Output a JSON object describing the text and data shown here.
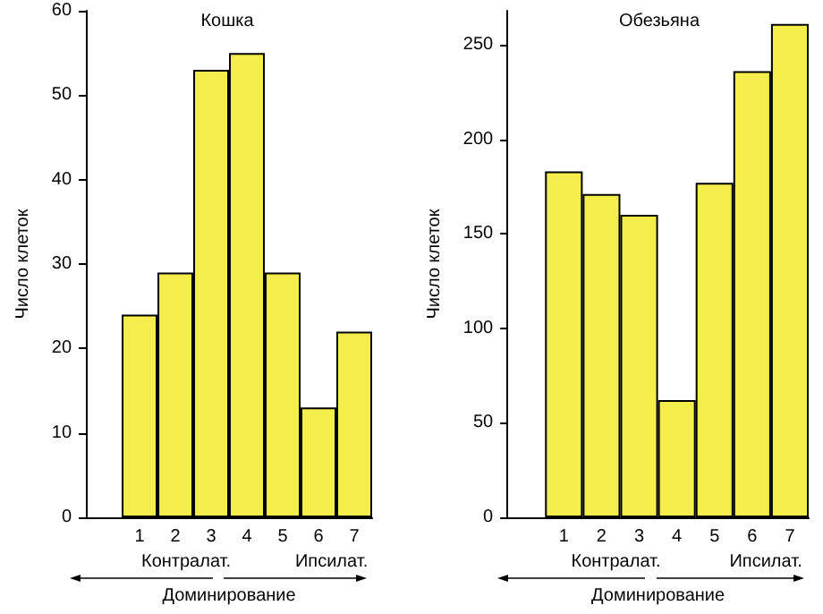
{
  "chart_data": [
    {
      "type": "bar",
      "title": "Кошка",
      "xlabel": "Доминирование",
      "ylabel": "Число клеток",
      "categories": [
        null,
        "1",
        "2",
        "3",
        "4",
        "5",
        "6",
        "7"
      ],
      "values": [
        null,
        24,
        29,
        53,
        55,
        29,
        13,
        22
      ],
      "color": "#f4ee4c",
      "ylim": [
        0,
        60
      ],
      "yticks": [
        0,
        10,
        20,
        30,
        40,
        50,
        60
      ],
      "grid": false,
      "annotations": [
        "Контралат.",
        "Ипсилат."
      ]
    },
    {
      "type": "bar",
      "title": "Обезьяна",
      "xlabel": "Доминирование",
      "ylabel": "Число клеток",
      "categories": [
        null,
        "1",
        "2",
        "3",
        "4",
        "5",
        "6",
        "7"
      ],
      "values": [
        null,
        183,
        171,
        160,
        62,
        177,
        236,
        261
      ],
      "color": "#f4ee4c",
      "ylim": [
        0,
        268
      ],
      "yticks": [
        0,
        50,
        100,
        150,
        200,
        250
      ],
      "grid": false,
      "annotations": [
        "Контралат.",
        "Ипсилат."
      ]
    }
  ]
}
